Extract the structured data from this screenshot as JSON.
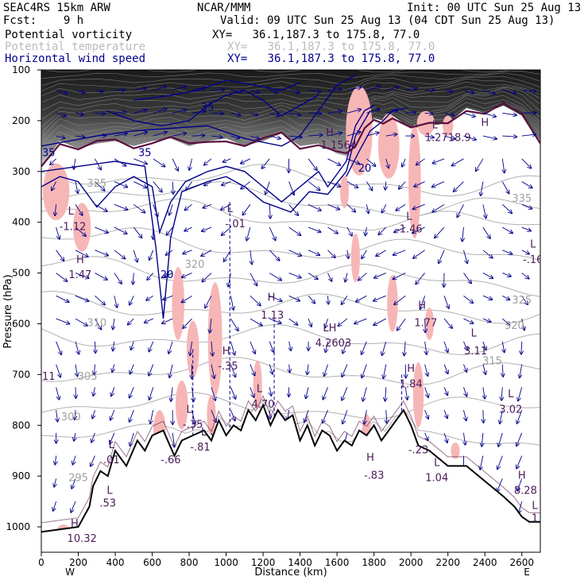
{
  "header": {
    "model": "SEAC4RS 15km ARW",
    "org": "NCAR/MMM",
    "init": "Init: 00 UTC Sun 25 Aug 13",
    "fcst": "Fcst:    9 h",
    "valid": "Valid: 09 UTC Sun 25 Aug 13 (04 CDT Sun 25 Aug 13)",
    "legend": [
      {
        "name": "Potential vorticity",
        "xy": "XY=   36.1,187.3 to 175.8, 77.0",
        "color": "#000000"
      },
      {
        "name": "Potential temperature",
        "xy": "XY=   36.1,187.3 to 175.8, 77.0",
        "color": "#bbbbbb"
      },
      {
        "name": "Horizontal wind speed",
        "xy": "XY=   36.1,187.3 to 175.8, 77.0",
        "color": "#00008b"
      }
    ]
  },
  "chart_data": {
    "type": "cross-section",
    "xlabel": "Distance (km)",
    "ylabel": "Pressure (hPa)",
    "xlim": [
      0,
      2700
    ],
    "ylim": [
      1050,
      100
    ],
    "x_ticks": [
      0,
      200,
      400,
      600,
      800,
      1000,
      1200,
      1400,
      1600,
      1800,
      2000,
      2200,
      2400,
      2600
    ],
    "y_ticks": [
      100,
      200,
      300,
      400,
      500,
      600,
      700,
      800,
      900,
      1000
    ],
    "x_end_labels": {
      "left": "W",
      "right": "E"
    },
    "terrain": [
      [
        0,
        1010
      ],
      [
        200,
        1000
      ],
      [
        260,
        960
      ],
      [
        280,
        920
      ],
      [
        320,
        890
      ],
      [
        360,
        900
      ],
      [
        400,
        850
      ],
      [
        460,
        880
      ],
      [
        520,
        830
      ],
      [
        560,
        850
      ],
      [
        600,
        820
      ],
      [
        660,
        810
      ],
      [
        720,
        860
      ],
      [
        760,
        830
      ],
      [
        820,
        820
      ],
      [
        880,
        810
      ],
      [
        920,
        830
      ],
      [
        960,
        790
      ],
      [
        1000,
        820
      ],
      [
        1040,
        800
      ],
      [
        1080,
        810
      ],
      [
        1120,
        770
      ],
      [
        1160,
        790
      ],
      [
        1200,
        760
      ],
      [
        1240,
        800
      ],
      [
        1280,
        770
      ],
      [
        1320,
        790
      ],
      [
        1360,
        780
      ],
      [
        1400,
        830
      ],
      [
        1440,
        800
      ],
      [
        1480,
        840
      ],
      [
        1520,
        810
      ],
      [
        1560,
        820
      ],
      [
        1600,
        850
      ],
      [
        1640,
        830
      ],
      [
        1680,
        840
      ],
      [
        1720,
        810
      ],
      [
        1760,
        820
      ],
      [
        1800,
        800
      ],
      [
        1840,
        830
      ],
      [
        1880,
        810
      ],
      [
        1920,
        790
      ],
      [
        1960,
        770
      ],
      [
        2000,
        800
      ],
      [
        2040,
        840
      ],
      [
        2100,
        850
      ],
      [
        2200,
        880
      ],
      [
        2300,
        880
      ],
      [
        2400,
        910
      ],
      [
        2500,
        940
      ],
      [
        2560,
        960
      ],
      [
        2600,
        980
      ],
      [
        2640,
        990
      ],
      [
        2700,
        990
      ]
    ],
    "wind_isotach_labels": [
      {
        "x": 40,
        "p": 270,
        "text": "35"
      },
      {
        "x": 560,
        "p": 270,
        "text": "35"
      },
      {
        "x": 900,
        "p": 180,
        "text": "35"
      },
      {
        "x": 1750,
        "p": 300,
        "text": "20"
      },
      {
        "x": 680,
        "p": 510,
        "text": "20"
      }
    ],
    "theta_labels": [
      {
        "x": 300,
        "p": 330,
        "text": "325"
      },
      {
        "x": 300,
        "p": 605,
        "text": "310"
      },
      {
        "x": 250,
        "p": 710,
        "text": "305"
      },
      {
        "x": 160,
        "p": 790,
        "text": "300"
      },
      {
        "x": 200,
        "p": 910,
        "text": "295"
      },
      {
        "x": 830,
        "p": 490,
        "text": "320"
      },
      {
        "x": 2600,
        "p": 360,
        "text": "335"
      },
      {
        "x": 2600,
        "p": 560,
        "text": "325"
      },
      {
        "x": 2560,
        "p": 610,
        "text": "320"
      },
      {
        "x": 2440,
        "p": 680,
        "text": "315"
      }
    ],
    "pv_extrema": [
      {
        "x": 160,
        "p": 385,
        "text": "L"
      },
      {
        "x": 170,
        "p": 415,
        "text": "-1.12"
      },
      {
        "x": 210,
        "p": 480,
        "text": "H"
      },
      {
        "x": 210,
        "p": 510,
        "text": "1.47"
      },
      {
        "x": 1020,
        "p": 380,
        "text": "L"
      },
      {
        "x": 1050,
        "p": 410,
        "text": "-.01"
      },
      {
        "x": 1245,
        "p": 555,
        "text": "H"
      },
      {
        "x": 1250,
        "p": 590,
        "text": "1.13"
      },
      {
        "x": 1560,
        "p": 230,
        "text": "H"
      },
      {
        "x": 1600,
        "p": 255,
        "text": "-1.1564"
      },
      {
        "x": 1990,
        "p": 395,
        "text": "L"
      },
      {
        "x": 1990,
        "p": 420,
        "text": "-1.46"
      },
      {
        "x": 2130,
        "p": 215,
        "text": "L"
      },
      {
        "x": 2200,
        "p": 240,
        "text": "1.2718.9"
      },
      {
        "x": 2400,
        "p": 210,
        "text": "H"
      },
      {
        "x": 1560,
        "p": 615,
        "text": "LH"
      },
      {
        "x": 1580,
        "p": 645,
        "text": "4.2603"
      },
      {
        "x": 2060,
        "p": 570,
        "text": "H"
      },
      {
        "x": 2080,
        "p": 605,
        "text": "1.77"
      },
      {
        "x": 2340,
        "p": 625,
        "text": "L"
      },
      {
        "x": 2350,
        "p": 660,
        "text": "3.11"
      },
      {
        "x": 1000,
        "p": 660,
        "text": "H"
      },
      {
        "x": 1010,
        "p": 690,
        "text": "-.35"
      },
      {
        "x": 1180,
        "p": 735,
        "text": "L"
      },
      {
        "x": 1200,
        "p": 765,
        "text": "4.70"
      },
      {
        "x": 2000,
        "p": 695,
        "text": "H"
      },
      {
        "x": 2000,
        "p": 725,
        "text": "1.84"
      },
      {
        "x": 2540,
        "p": 745,
        "text": "L"
      },
      {
        "x": 2540,
        "p": 775,
        "text": "3.02"
      },
      {
        "x": 2660,
        "p": 450,
        "text": "L"
      },
      {
        "x": 2660,
        "p": 480,
        "text": "-.16"
      },
      {
        "x": 800,
        "p": 775,
        "text": "L"
      },
      {
        "x": 820,
        "p": 805,
        "text": "-.35"
      },
      {
        "x": 880,
        "p": 820,
        "text": "L"
      },
      {
        "x": 860,
        "p": 850,
        "text": "-.81"
      },
      {
        "x": 700,
        "p": 875,
        "text": "-.66"
      },
      {
        "x": 2040,
        "p": 855,
        "text": "-.23"
      },
      {
        "x": 2140,
        "p": 880,
        "text": "L"
      },
      {
        "x": 2140,
        "p": 910,
        "text": "1.04"
      },
      {
        "x": 1780,
        "p": 870,
        "text": "H"
      },
      {
        "x": 1800,
        "p": 905,
        "text": "-.83"
      },
      {
        "x": 2600,
        "p": 905,
        "text": "H"
      },
      {
        "x": 2620,
        "p": 935,
        "text": "8.28"
      },
      {
        "x": 2670,
        "p": 965,
        "text": "L"
      },
      {
        "x": 2670,
        "p": 990,
        "text": "1"
      },
      {
        "x": 380,
        "p": 845,
        "text": "L"
      },
      {
        "x": 380,
        "p": 875,
        "text": ".01"
      },
      {
        "x": 370,
        "p": 935,
        "text": "L"
      },
      {
        "x": 360,
        "p": 960,
        "text": ".53"
      },
      {
        "x": 180,
        "p": 1000,
        "text": "H"
      },
      {
        "x": 220,
        "p": 1030,
        "text": "10.32"
      },
      {
        "x": 40,
        "p": 710,
        "text": "11"
      }
    ]
  },
  "colors": {
    "pv": "#000000",
    "theta": "#b0b0b0",
    "wind": "#00008b",
    "pv_dark": "#5a1040",
    "pv_fill": "#f7b6b6",
    "pv_label": "#4b1a5a"
  }
}
